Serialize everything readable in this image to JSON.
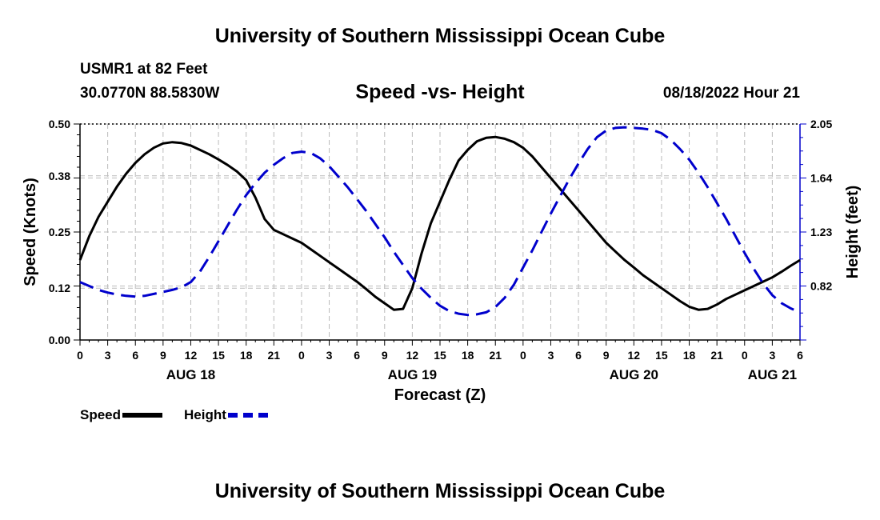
{
  "page": {
    "title_top": "University of Southern Mississippi Ocean Cube",
    "title_bottom": "University of Southern Mississippi Ocean Cube",
    "station": "USMR1 at 82 Feet",
    "coordinates": "30.0770N  88.5830W",
    "subtitle": "Speed -vs- Height",
    "datetime": "08/18/2022 Hour 21"
  },
  "legend": {
    "speed_label": "Speed",
    "height_label": "Height"
  },
  "chart_data": {
    "type": "line",
    "title": "Speed -vs- Height",
    "xlabel": "Forecast (Z)",
    "ylabel": "Speed (Knots)",
    "y2label": "Height (feet)",
    "xlim": [
      0,
      78
    ],
    "ylim": [
      0,
      0.5
    ],
    "y2lim": [
      0.41,
      2.05
    ],
    "yticks": [
      "0.00",
      "0.12",
      "0.25",
      "0.38",
      "0.50"
    ],
    "y2ticks": [
      "0.82",
      "1.23",
      "1.64",
      "2.05"
    ],
    "x_tick_labels": [
      "0",
      "3",
      "6",
      "9",
      "12",
      "15",
      "18",
      "21",
      "0",
      "3",
      "6",
      "9",
      "12",
      "15",
      "18",
      "21",
      "0",
      "3",
      "6",
      "9",
      "12",
      "15",
      "18",
      "21",
      "0",
      "3",
      "6"
    ],
    "date_labels": [
      {
        "label": "AUG 18",
        "hour": 12
      },
      {
        "label": "AUG 19",
        "hour": 36
      },
      {
        "label": "AUG 20",
        "hour": 60
      },
      {
        "label": "AUG 21",
        "hour": 75
      }
    ],
    "grid": true,
    "series": [
      {
        "name": "Speed",
        "axis": "left",
        "color": "#000000",
        "style": "solid",
        "x": [
          0,
          1,
          2,
          3,
          4,
          5,
          6,
          7,
          8,
          9,
          10,
          11,
          12,
          13,
          14,
          15,
          16,
          17,
          18,
          19,
          20,
          21,
          22,
          23,
          24,
          25,
          26,
          27,
          28,
          29,
          30,
          31,
          32,
          33,
          34,
          35,
          36,
          37,
          38,
          39,
          40,
          41,
          42,
          43,
          44,
          45,
          46,
          47,
          48,
          49,
          50,
          51,
          52,
          53,
          54,
          55,
          56,
          57,
          58,
          59,
          60,
          61,
          62,
          63,
          64,
          65,
          66,
          67,
          68,
          69,
          70,
          71,
          72,
          73,
          74,
          75,
          76,
          77,
          78
        ],
        "y": [
          0.185,
          0.24,
          0.285,
          0.32,
          0.355,
          0.385,
          0.41,
          0.43,
          0.445,
          0.455,
          0.458,
          0.456,
          0.45,
          0.44,
          0.43,
          0.418,
          0.405,
          0.39,
          0.37,
          0.33,
          0.28,
          0.255,
          0.245,
          0.235,
          0.225,
          0.21,
          0.195,
          0.18,
          0.165,
          0.15,
          0.135,
          0.118,
          0.1,
          0.085,
          0.07,
          0.072,
          0.12,
          0.2,
          0.27,
          0.32,
          0.37,
          0.415,
          0.44,
          0.46,
          0.468,
          0.47,
          0.466,
          0.458,
          0.445,
          0.425,
          0.4,
          0.375,
          0.35,
          0.325,
          0.3,
          0.275,
          0.25,
          0.225,
          0.205,
          0.185,
          0.168,
          0.15,
          0.135,
          0.12,
          0.105,
          0.09,
          0.077,
          0.07,
          0.072,
          0.082,
          0.095,
          0.105,
          0.115,
          0.125,
          0.135,
          0.145,
          0.158,
          0.172,
          0.185
        ]
      },
      {
        "name": "Height",
        "axis": "right",
        "color": "#0000cc",
        "style": "dashed",
        "x": [
          0,
          1,
          2,
          3,
          4,
          5,
          6,
          7,
          8,
          9,
          10,
          11,
          12,
          13,
          14,
          15,
          16,
          17,
          18,
          19,
          20,
          21,
          22,
          23,
          24,
          25,
          26,
          27,
          28,
          29,
          30,
          31,
          32,
          33,
          34,
          35,
          36,
          37,
          38,
          39,
          40,
          41,
          42,
          43,
          44,
          45,
          46,
          47,
          48,
          49,
          50,
          51,
          52,
          53,
          54,
          55,
          56,
          57,
          58,
          59,
          60,
          61,
          62,
          63,
          64,
          65,
          66,
          67,
          68,
          69,
          70,
          71,
          72,
          73,
          74,
          75,
          76,
          77,
          78
        ],
        "y": [
          0.85,
          0.82,
          0.79,
          0.77,
          0.755,
          0.745,
          0.74,
          0.745,
          0.76,
          0.775,
          0.79,
          0.81,
          0.85,
          0.93,
          1.04,
          1.16,
          1.28,
          1.4,
          1.51,
          1.6,
          1.68,
          1.74,
          1.79,
          1.83,
          1.84,
          1.83,
          1.79,
          1.73,
          1.65,
          1.57,
          1.48,
          1.39,
          1.29,
          1.19,
          1.08,
          0.98,
          0.88,
          0.8,
          0.73,
          0.67,
          0.63,
          0.61,
          0.6,
          0.605,
          0.62,
          0.66,
          0.73,
          0.83,
          0.96,
          1.09,
          1.23,
          1.37,
          1.5,
          1.63,
          1.75,
          1.86,
          1.95,
          2.0,
          2.02,
          2.025,
          2.02,
          2.015,
          2.005,
          1.98,
          1.93,
          1.86,
          1.78,
          1.68,
          1.57,
          1.45,
          1.33,
          1.2,
          1.07,
          0.95,
          0.84,
          0.75,
          0.69,
          0.65,
          0.62
        ]
      }
    ]
  }
}
